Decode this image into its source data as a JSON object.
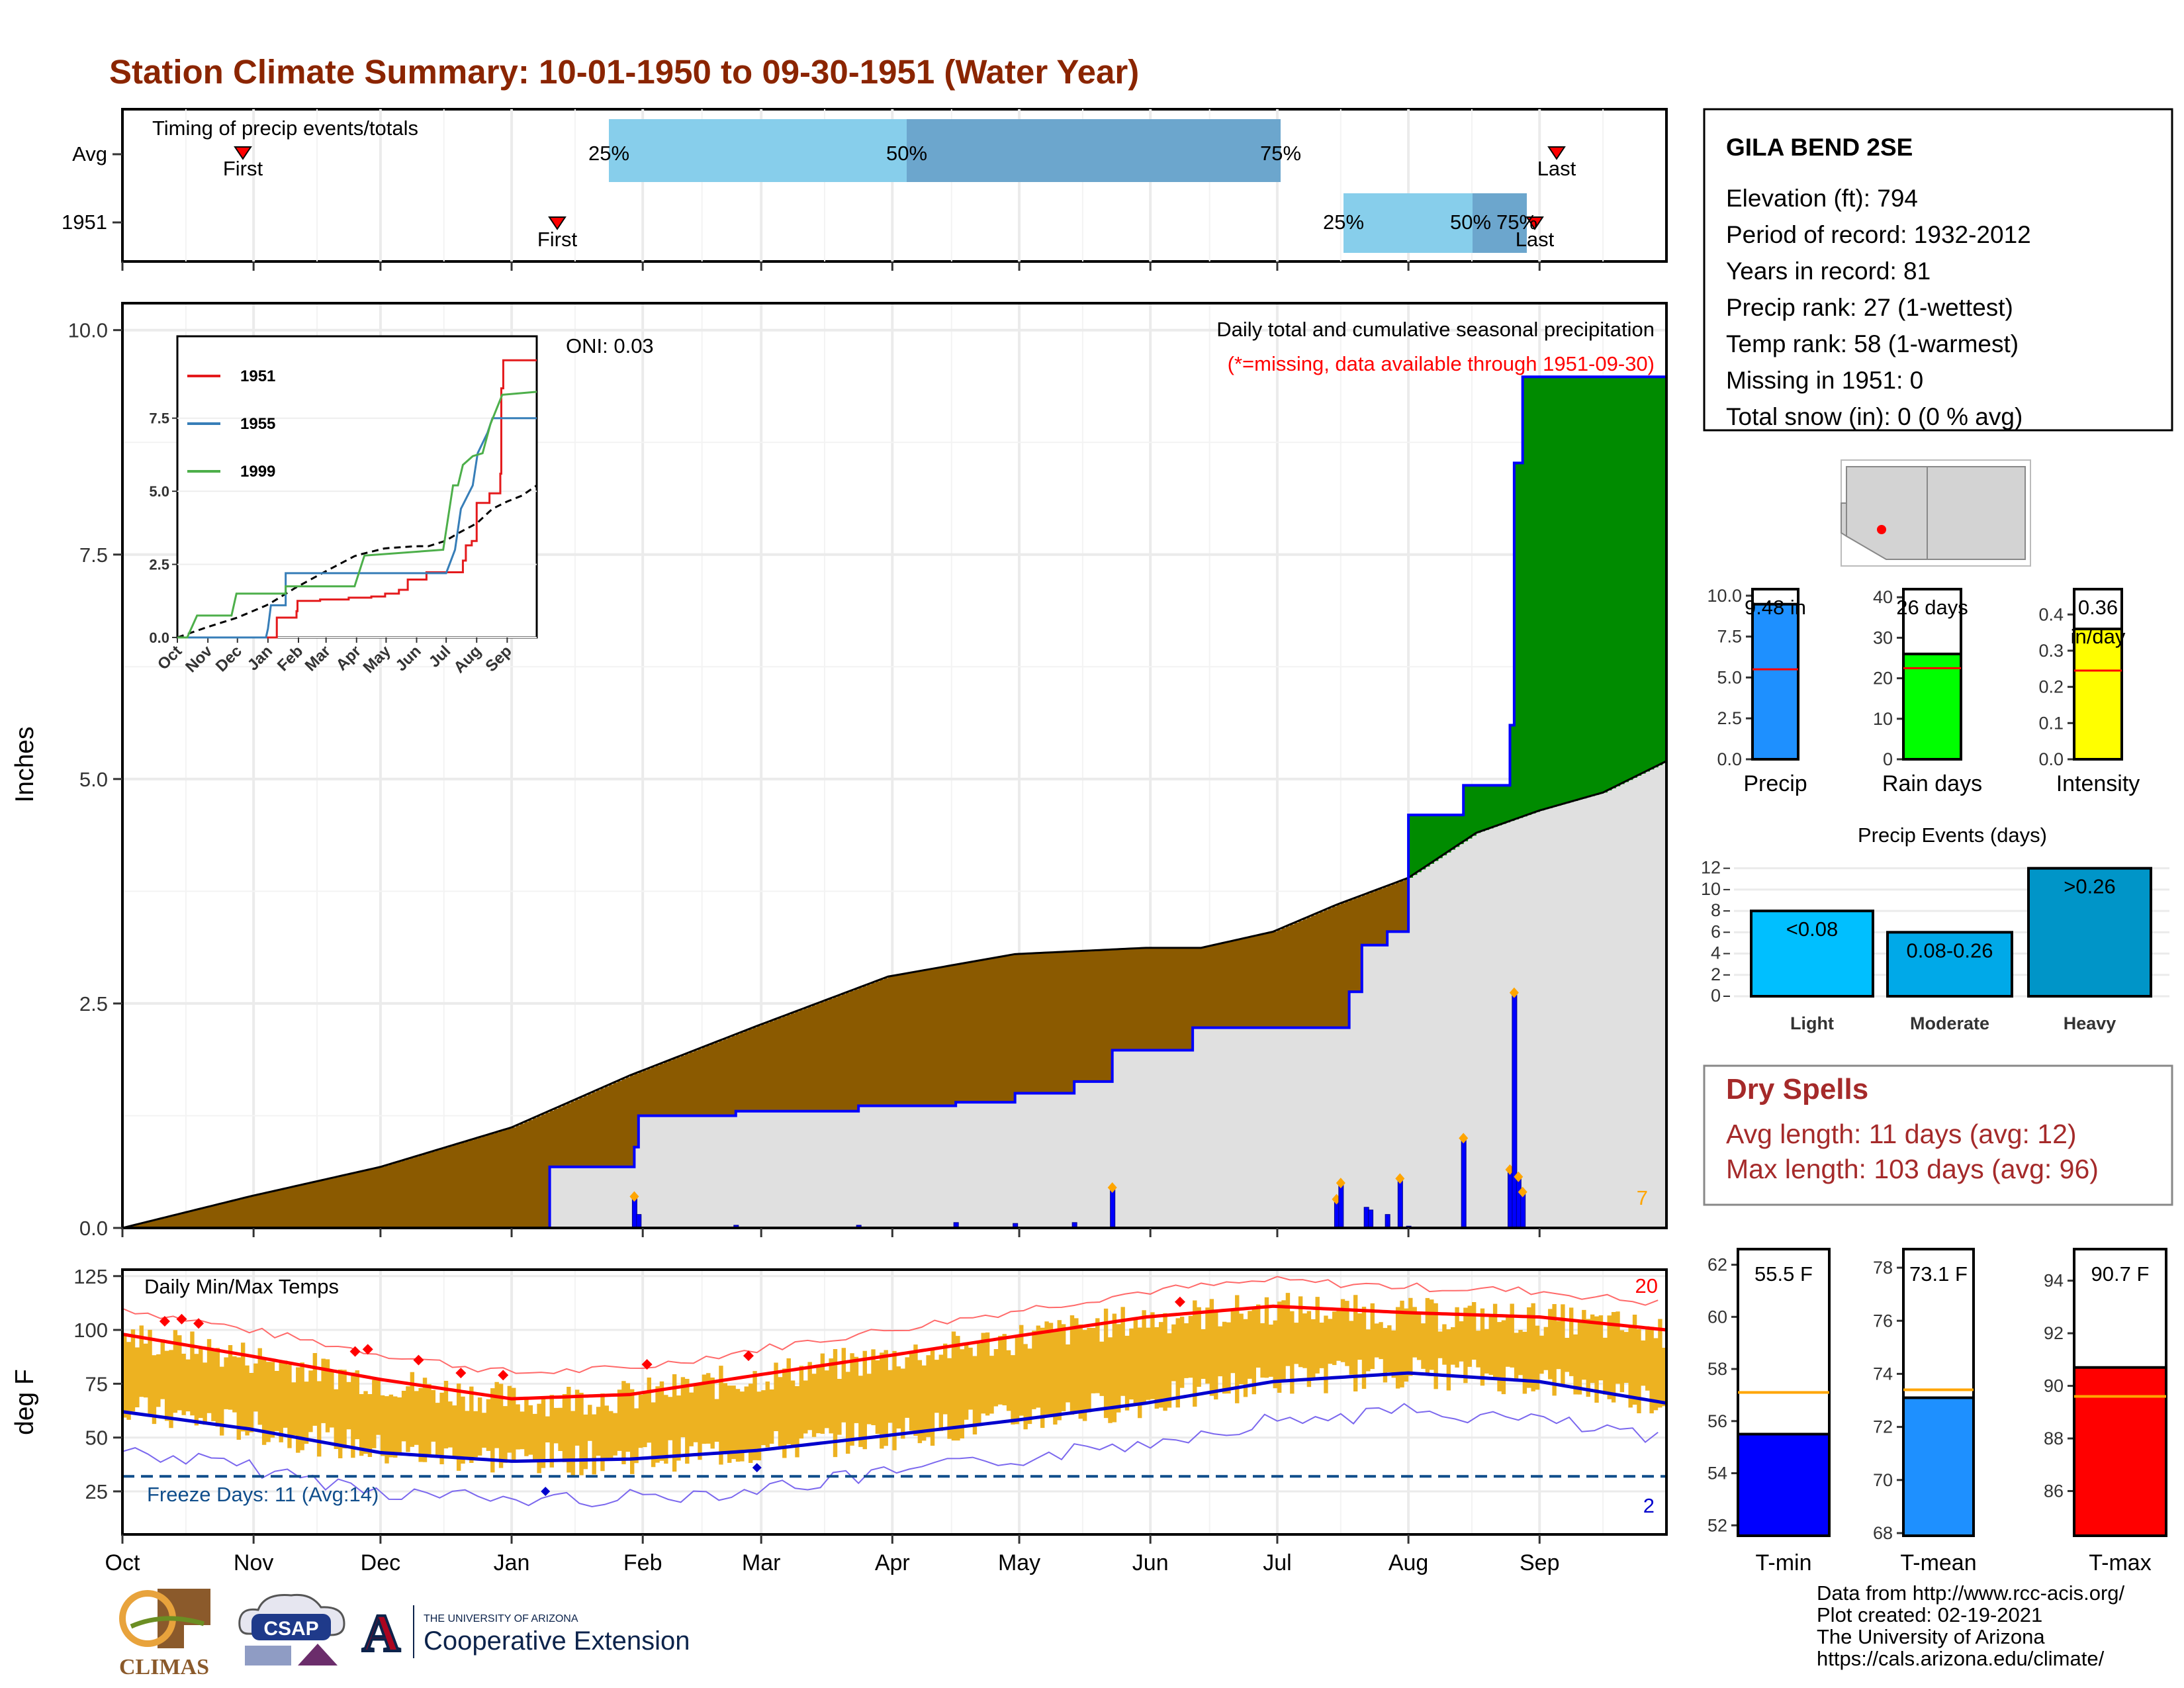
{
  "title": "Station Climate Summary: 10-01-1950 to 09-30-1951 (Water Year)",
  "timing": {
    "label": "Timing of precip events/totals",
    "rows": [
      "Avg",
      "1951"
    ],
    "avg": {
      "first": "First",
      "last": "Last",
      "p25": "25%",
      "p50": "50%",
      "p75": "75%"
    },
    "y1951": {
      "first": "First",
      "last": "Last",
      "p25": "25%",
      "p50": "50%",
      "p75": "75%"
    }
  },
  "precip_panel": {
    "title": "Daily total and cumulative seasonal precipitation",
    "missing_note": "(*=missing, data available through 1951-09-30)",
    "oni": "ONI: 0.03",
    "ylabel": "Inches",
    "yticks": [
      "0.0",
      "2.5",
      "5.0",
      "7.5",
      "10.0"
    ],
    "count_label": "7"
  },
  "inset": {
    "legend": [
      "1951",
      "1955",
      "1999"
    ],
    "yticks": [
      "0.0",
      "2.5",
      "5.0",
      "7.5"
    ],
    "xticks": [
      "Oct",
      "Nov",
      "Dec",
      "Jan",
      "Feb",
      "Mar",
      "Apr",
      "May",
      "Jun",
      "Jul",
      "Aug",
      "Sep"
    ]
  },
  "temp_panel": {
    "title": "Daily Min/Max Temps",
    "ylabel": "deg F",
    "yticks": [
      "25",
      "50",
      "75",
      "100",
      "125"
    ],
    "freeze": "Freeze Days: 11 (Avg:14)",
    "hot_count": "20",
    "cold_count": "2"
  },
  "months": [
    "Oct",
    "Nov",
    "Dec",
    "Jan",
    "Feb",
    "Mar",
    "Apr",
    "May",
    "Jun",
    "Jul",
    "Aug",
    "Sep"
  ],
  "station": {
    "name": "GILA BEND 2SE",
    "lines": [
      "Elevation (ft): 794",
      "Period of record: 1932-2012",
      "Years in record: 81",
      "Precip rank: 27 (1-wettest)",
      "Temp rank: 58 (1-warmest)",
      "Missing in 1951: 0",
      "Total snow (in): 0 (0 % avg)"
    ]
  },
  "mini_bars": [
    {
      "label": "Precip",
      "value": 9.48,
      "avg": 5.5,
      "text": "9.48 in",
      "yticks": [
        "0.0",
        "2.5",
        "5.0",
        "7.5",
        "10.0"
      ],
      "ymax": 10.4,
      "color": "#1e90ff"
    },
    {
      "label": "Rain days",
      "value": 26,
      "avg": 22.5,
      "text": "26 days",
      "yticks": [
        "0",
        "10",
        "20",
        "30",
        "40"
      ],
      "ymax": 42,
      "color": "#00ff00"
    },
    {
      "label": "Intensity",
      "value": 0.36,
      "avg": 0.245,
      "text": "0.36",
      "text2": "in/day",
      "yticks": [
        "0.0",
        "0.1",
        "0.2",
        "0.3",
        "0.4"
      ],
      "ymax": 0.47,
      "color": "#ffff00"
    }
  ],
  "precip_events": {
    "title": "Precip Events (days)",
    "yticks": [
      "0",
      "2",
      "4",
      "6",
      "8",
      "10",
      "12"
    ],
    "bars": [
      {
        "cat": "Light",
        "value": 8,
        "text": "<0.08",
        "color": "#00bfff"
      },
      {
        "cat": "Moderate",
        "value": 6,
        "text": "0.08-0.26",
        "color": "#00a9e8"
      },
      {
        "cat": "Heavy",
        "value": 12,
        "text": ">0.26",
        "color": "#0095c8"
      }
    ]
  },
  "dry_spells": {
    "title": "Dry Spells",
    "avg": "Avg length: 11 days (avg: 12)",
    "max": "Max length: 103 days (avg: 96)"
  },
  "temp_bars": [
    {
      "label": "T-min",
      "value": 55.5,
      "avg": 57.1,
      "text": "55.5 F",
      "yticks": [
        "52",
        "54",
        "56",
        "58",
        "60",
        "62"
      ],
      "ymin": 51.6,
      "ymax": 62.6,
      "color": "#0000ff"
    },
    {
      "label": "T-mean",
      "value": 73.1,
      "avg": 73.4,
      "text": "73.1 F",
      "yticks": [
        "68",
        "70",
        "72",
        "74",
        "76",
        "78"
      ],
      "ymin": 67.9,
      "ymax": 78.7,
      "color": "#1e90ff"
    },
    {
      "label": "T-max",
      "value": 90.7,
      "avg": 89.6,
      "text": "90.7 F",
      "yticks": [
        "86",
        "88",
        "90",
        "92",
        "94"
      ],
      "ymin": 84.3,
      "ymax": 95.2,
      "color": "#ff0000"
    }
  ],
  "footer": [
    "Data from http://www.rcc-acis.org/",
    "Plot created: 02-19-2021",
    "The University of Arizona",
    "https://cals.arizona.edu/climate/"
  ],
  "logos": {
    "climas": "CLIMAS",
    "csap": "CSAP",
    "ua_small": "THE UNIVERSITY OF ARIZONA",
    "ua_big": "Cooperative Extension",
    "ua_letter": "A"
  },
  "chart_data": [
    {
      "type": "area",
      "title": "Daily total and cumulative seasonal precipitation",
      "ylabel": "Inches",
      "ylim": [
        0,
        10.3
      ],
      "x_unit": "days since Oct 1",
      "avg_cumulative": [
        [
          0,
          0
        ],
        [
          30,
          0.35
        ],
        [
          61,
          0.68
        ],
        [
          92,
          1.12
        ],
        [
          120,
          1.7
        ],
        [
          150,
          2.25
        ],
        [
          181,
          2.8
        ],
        [
          211,
          3.05
        ],
        [
          242,
          3.12
        ],
        [
          255,
          3.12
        ],
        [
          272,
          3.3
        ],
        [
          287,
          3.6
        ],
        [
          304,
          3.9
        ],
        [
          320,
          4.4
        ],
        [
          335,
          4.65
        ],
        [
          350,
          4.85
        ],
        [
          365,
          5.2
        ]
      ],
      "obs_cumulative": [
        [
          0,
          0
        ],
        [
          101,
          0
        ],
        [
          101,
          0.68
        ],
        [
          121,
          0.68
        ],
        [
          121,
          0.9
        ],
        [
          122,
          0.9
        ],
        [
          122,
          1.25
        ],
        [
          145,
          1.25
        ],
        [
          145,
          1.3
        ],
        [
          174,
          1.3
        ],
        [
          174,
          1.36
        ],
        [
          197,
          1.36
        ],
        [
          197,
          1.4
        ],
        [
          211,
          1.4
        ],
        [
          211,
          1.5
        ],
        [
          225,
          1.5
        ],
        [
          225,
          1.63
        ],
        [
          234,
          1.63
        ],
        [
          234,
          1.98
        ],
        [
          253,
          1.98
        ],
        [
          253,
          2.23
        ],
        [
          290,
          2.23
        ],
        [
          290,
          2.63
        ],
        [
          293,
          2.63
        ],
        [
          293,
          3.15
        ],
        [
          299,
          3.15
        ],
        [
          299,
          3.3
        ],
        [
          304,
          3.3
        ],
        [
          304,
          4.6
        ],
        [
          317,
          4.6
        ],
        [
          317,
          4.93
        ],
        [
          328,
          4.93
        ],
        [
          328,
          5.6
        ],
        [
          329,
          5.6
        ],
        [
          329,
          8.52
        ],
        [
          331,
          8.52
        ],
        [
          331,
          9.48
        ],
        [
          365,
          9.48
        ]
      ],
      "daily_precip": [
        [
          121,
          0.35
        ],
        [
          122,
          0.15
        ],
        [
          145,
          0.03
        ],
        [
          174,
          0.03
        ],
        [
          197,
          0.06
        ],
        [
          211,
          0.05
        ],
        [
          225,
          0.06
        ],
        [
          234,
          0.45
        ],
        [
          287,
          0.32
        ],
        [
          288,
          0.5
        ],
        [
          294,
          0.23
        ],
        [
          295,
          0.2
        ],
        [
          299,
          0.15
        ],
        [
          302,
          0.55
        ],
        [
          304,
          0.02
        ],
        [
          317,
          1.0
        ],
        [
          328,
          0.65
        ],
        [
          329,
          2.62
        ],
        [
          330,
          0.57
        ],
        [
          331,
          0.4
        ]
      ]
    },
    {
      "type": "line",
      "title": "Daily Min/Max Temps",
      "ylabel": "deg F",
      "ylim": [
        5,
        128
      ],
      "avg_max": [
        [
          0,
          98
        ],
        [
          30,
          88
        ],
        [
          61,
          77
        ],
        [
          92,
          68
        ],
        [
          120,
          70
        ],
        [
          150,
          79
        ],
        [
          181,
          88
        ],
        [
          211,
          97
        ],
        [
          242,
          106
        ],
        [
          272,
          111
        ],
        [
          304,
          108
        ],
        [
          335,
          106
        ],
        [
          365,
          100
        ]
      ],
      "avg_min": [
        [
          0,
          62
        ],
        [
          30,
          54
        ],
        [
          61,
          43
        ],
        [
          92,
          39
        ],
        [
          120,
          40
        ],
        [
          150,
          44
        ],
        [
          181,
          51
        ],
        [
          211,
          58
        ],
        [
          242,
          66
        ],
        [
          272,
          76
        ],
        [
          304,
          80
        ],
        [
          335,
          76
        ],
        [
          365,
          66
        ]
      ],
      "freeze_line": 32
    }
  ]
}
